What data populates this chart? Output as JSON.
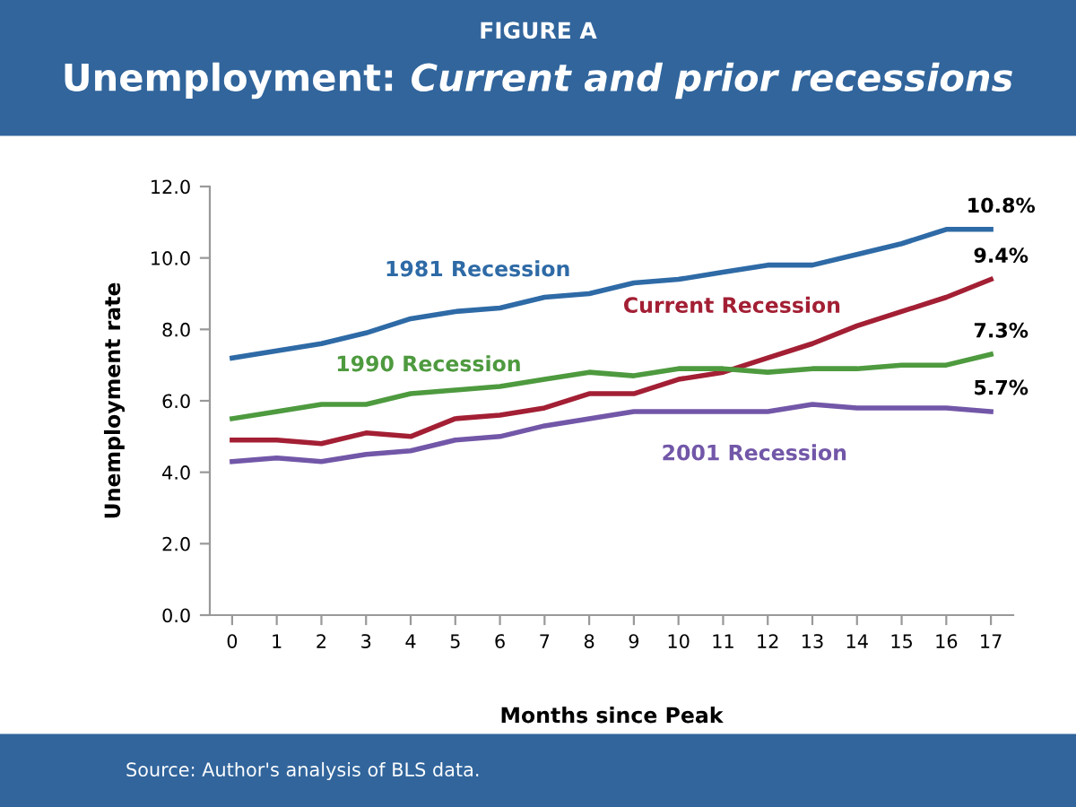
{
  "chart_data": {
    "type": "line",
    "title": "Unemployment: Current and prior recessions",
    "subtitle": "FIGURE A",
    "xlabel": "Months since Peak",
    "ylabel": "Unemployment rate",
    "categories": [
      "0",
      "1",
      "2",
      "3",
      "4",
      "5",
      "6",
      "7",
      "8",
      "9",
      "10",
      "11",
      "12",
      "13",
      "14",
      "15",
      "16",
      "17"
    ],
    "ylim": [
      0,
      12
    ],
    "yticks": [
      {
        "value": 0,
        "label": "0.0"
      },
      {
        "value": 2,
        "label": "2.0"
      },
      {
        "value": 4,
        "label": "4.0"
      },
      {
        "value": 6,
        "label": "6.0"
      },
      {
        "value": 8,
        "label": "8.0"
      },
      {
        "value": 10,
        "label": "10.0"
      },
      {
        "value": 12,
        "label": "12.0"
      }
    ],
    "grid": false,
    "legend": false,
    "marker": "none",
    "line_style": "solid",
    "series": [
      {
        "name": "1981 Recession",
        "color": "#2e6aa6",
        "values": [
          7.2,
          7.4,
          7.6,
          7.9,
          8.3,
          8.5,
          8.6,
          8.9,
          9.0,
          9.3,
          9.4,
          9.6,
          9.8,
          9.8,
          10.1,
          10.4,
          10.8,
          10.8
        ],
        "value_labels": [
          null,
          null,
          null,
          null,
          null,
          null,
          null,
          null,
          null,
          null,
          null,
          null,
          null,
          null,
          null,
          null,
          null,
          "10.8%"
        ]
      },
      {
        "name": "Current Recession",
        "color": "#a31f34",
        "values": [
          4.9,
          4.9,
          4.8,
          5.1,
          5.0,
          5.5,
          5.6,
          5.8,
          6.2,
          6.2,
          6.6,
          6.8,
          7.2,
          7.6,
          8.1,
          8.5,
          8.9,
          9.4
        ],
        "value_labels": [
          null,
          null,
          null,
          null,
          null,
          null,
          null,
          null,
          null,
          null,
          null,
          null,
          null,
          null,
          null,
          null,
          null,
          "9.4%"
        ]
      },
      {
        "name": "1990 Recession",
        "color": "#4e9a3f",
        "values": [
          5.5,
          5.7,
          5.9,
          5.9,
          6.2,
          6.3,
          6.4,
          6.6,
          6.8,
          6.7,
          6.9,
          6.9,
          6.8,
          6.9,
          6.9,
          7.0,
          7.0,
          7.3
        ],
        "value_labels": [
          null,
          null,
          null,
          null,
          null,
          null,
          null,
          null,
          null,
          null,
          null,
          null,
          null,
          null,
          null,
          null,
          null,
          "7.3%"
        ]
      },
      {
        "name": "2001 Recession",
        "color": "#7257a8",
        "values": [
          4.3,
          4.4,
          4.3,
          4.5,
          4.6,
          4.9,
          5.0,
          5.3,
          5.5,
          5.7,
          5.7,
          5.7,
          5.7,
          5.9,
          5.8,
          5.8,
          5.8,
          5.7
        ],
        "value_labels": [
          null,
          null,
          null,
          null,
          null,
          null,
          null,
          null,
          null,
          null,
          null,
          null,
          null,
          null,
          null,
          null,
          null,
          "5.7%"
        ]
      }
    ],
    "annotations": [
      "Source: Author's analysis of BLS data."
    ]
  }
}
